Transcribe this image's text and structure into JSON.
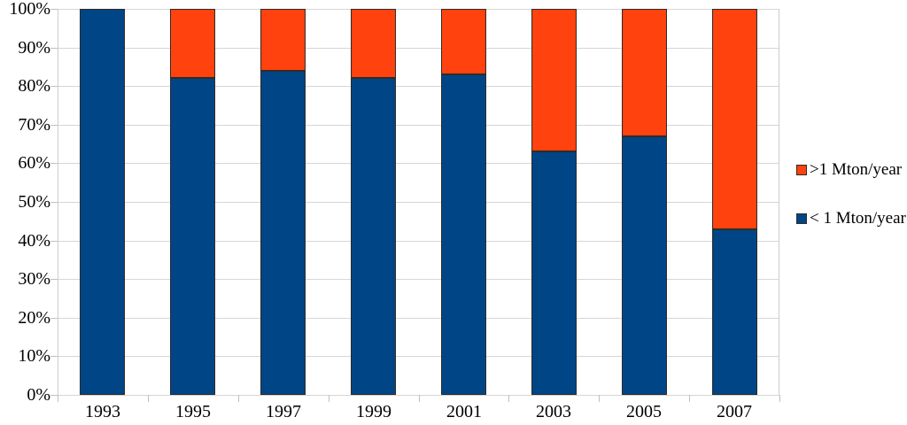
{
  "chart_data": {
    "type": "bar",
    "stacked": true,
    "percent": true,
    "title": "",
    "xlabel": "",
    "ylabel": "",
    "categories": [
      "1993",
      "1995",
      "1997",
      "1999",
      "2001",
      "2003",
      "2005",
      "2007"
    ],
    "series": [
      {
        "name": "< 1 Mton/year",
        "color": "#004586",
        "values": [
          100,
          82,
          84,
          82,
          83,
          63,
          67,
          43
        ]
      },
      {
        "name": ">1 Mton/year",
        "color": "#FF420E",
        "values": [
          0,
          18,
          16,
          18,
          17,
          37,
          33,
          57
        ]
      }
    ],
    "y_ticks": [
      "0%",
      "10%",
      "20%",
      "30%",
      "40%",
      "50%",
      "60%",
      "70%",
      "80%",
      "90%",
      "100%"
    ],
    "ylim": [
      0,
      100
    ],
    "grid": true,
    "legend_position": "right",
    "legend_items": [
      {
        "label": ">1 Mton/year",
        "color": "#FF420E"
      },
      {
        "label": "< 1 Mton/year",
        "color": "#004586"
      }
    ]
  },
  "colors": {
    "series_blue": "#004586",
    "series_orange": "#FF420E",
    "gridline": "#d6d6d6",
    "axis": "#bfbfbf",
    "bar_border": "#2f2c28",
    "text": "#000000",
    "background": "#ffffff"
  }
}
